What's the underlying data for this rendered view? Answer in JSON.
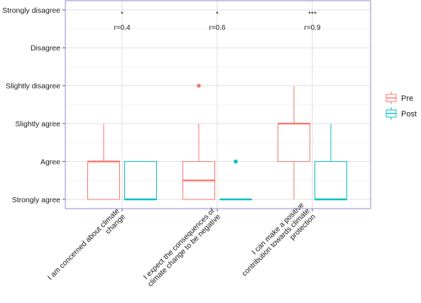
{
  "chart_data": {
    "type": "boxplot",
    "title": "",
    "xlabel": "",
    "ylabel": "",
    "y_levels": [
      "Strongly agree",
      "Agree",
      "Slightly agree",
      "Slightly disagree",
      "Disagree",
      "Strongly disagree"
    ],
    "y_direction": "Strongly agree at bottom, Strongly disagree at top",
    "categories": [
      "I am concerned about climate change",
      "I expect the consequences of climate change to be negative",
      "I can make a positive contribution towards climate protection"
    ],
    "category_label_lines": [
      [
        "I am concerned about climate",
        "change"
      ],
      [
        "I expect the consequences of",
        "climate change to be negative"
      ],
      [
        "I can make a positive",
        "contribution towards climate",
        "protection"
      ]
    ],
    "annotations": [
      {
        "significance": "*",
        "effect": "r=0.4"
      },
      {
        "significance": "*",
        "effect": "r=0.6"
      },
      {
        "significance": "***",
        "effect": "r=0.9"
      }
    ],
    "series": [
      {
        "name": "Pre",
        "color": "#F8766D",
        "boxes": [
          {
            "min": 1,
            "q1": 1,
            "median": 2,
            "q3": 2,
            "max": 3,
            "outliers": []
          },
          {
            "min": 1,
            "q1": 1,
            "median": 1.5,
            "q3": 2,
            "max": 3,
            "outliers": [
              4
            ]
          },
          {
            "min": 1,
            "q1": 2,
            "median": 3,
            "q3": 3,
            "max": 4,
            "outliers": []
          }
        ]
      },
      {
        "name": "Post",
        "color": "#00BFC4",
        "boxes": [
          {
            "min": 1,
            "q1": 1,
            "median": 1,
            "q3": 2,
            "max": 2,
            "outliers": []
          },
          {
            "min": 1,
            "q1": 1,
            "median": 1,
            "q3": 1,
            "max": 1,
            "outliers": [
              2
            ]
          },
          {
            "min": 1,
            "q1": 1,
            "median": 1,
            "q3": 2,
            "max": 3,
            "outliers": []
          }
        ]
      }
    ],
    "legend": {
      "position": "right",
      "entries": [
        "Pre",
        "Post"
      ]
    },
    "grid": true,
    "panel_border_color": "#8C8CC8"
  }
}
